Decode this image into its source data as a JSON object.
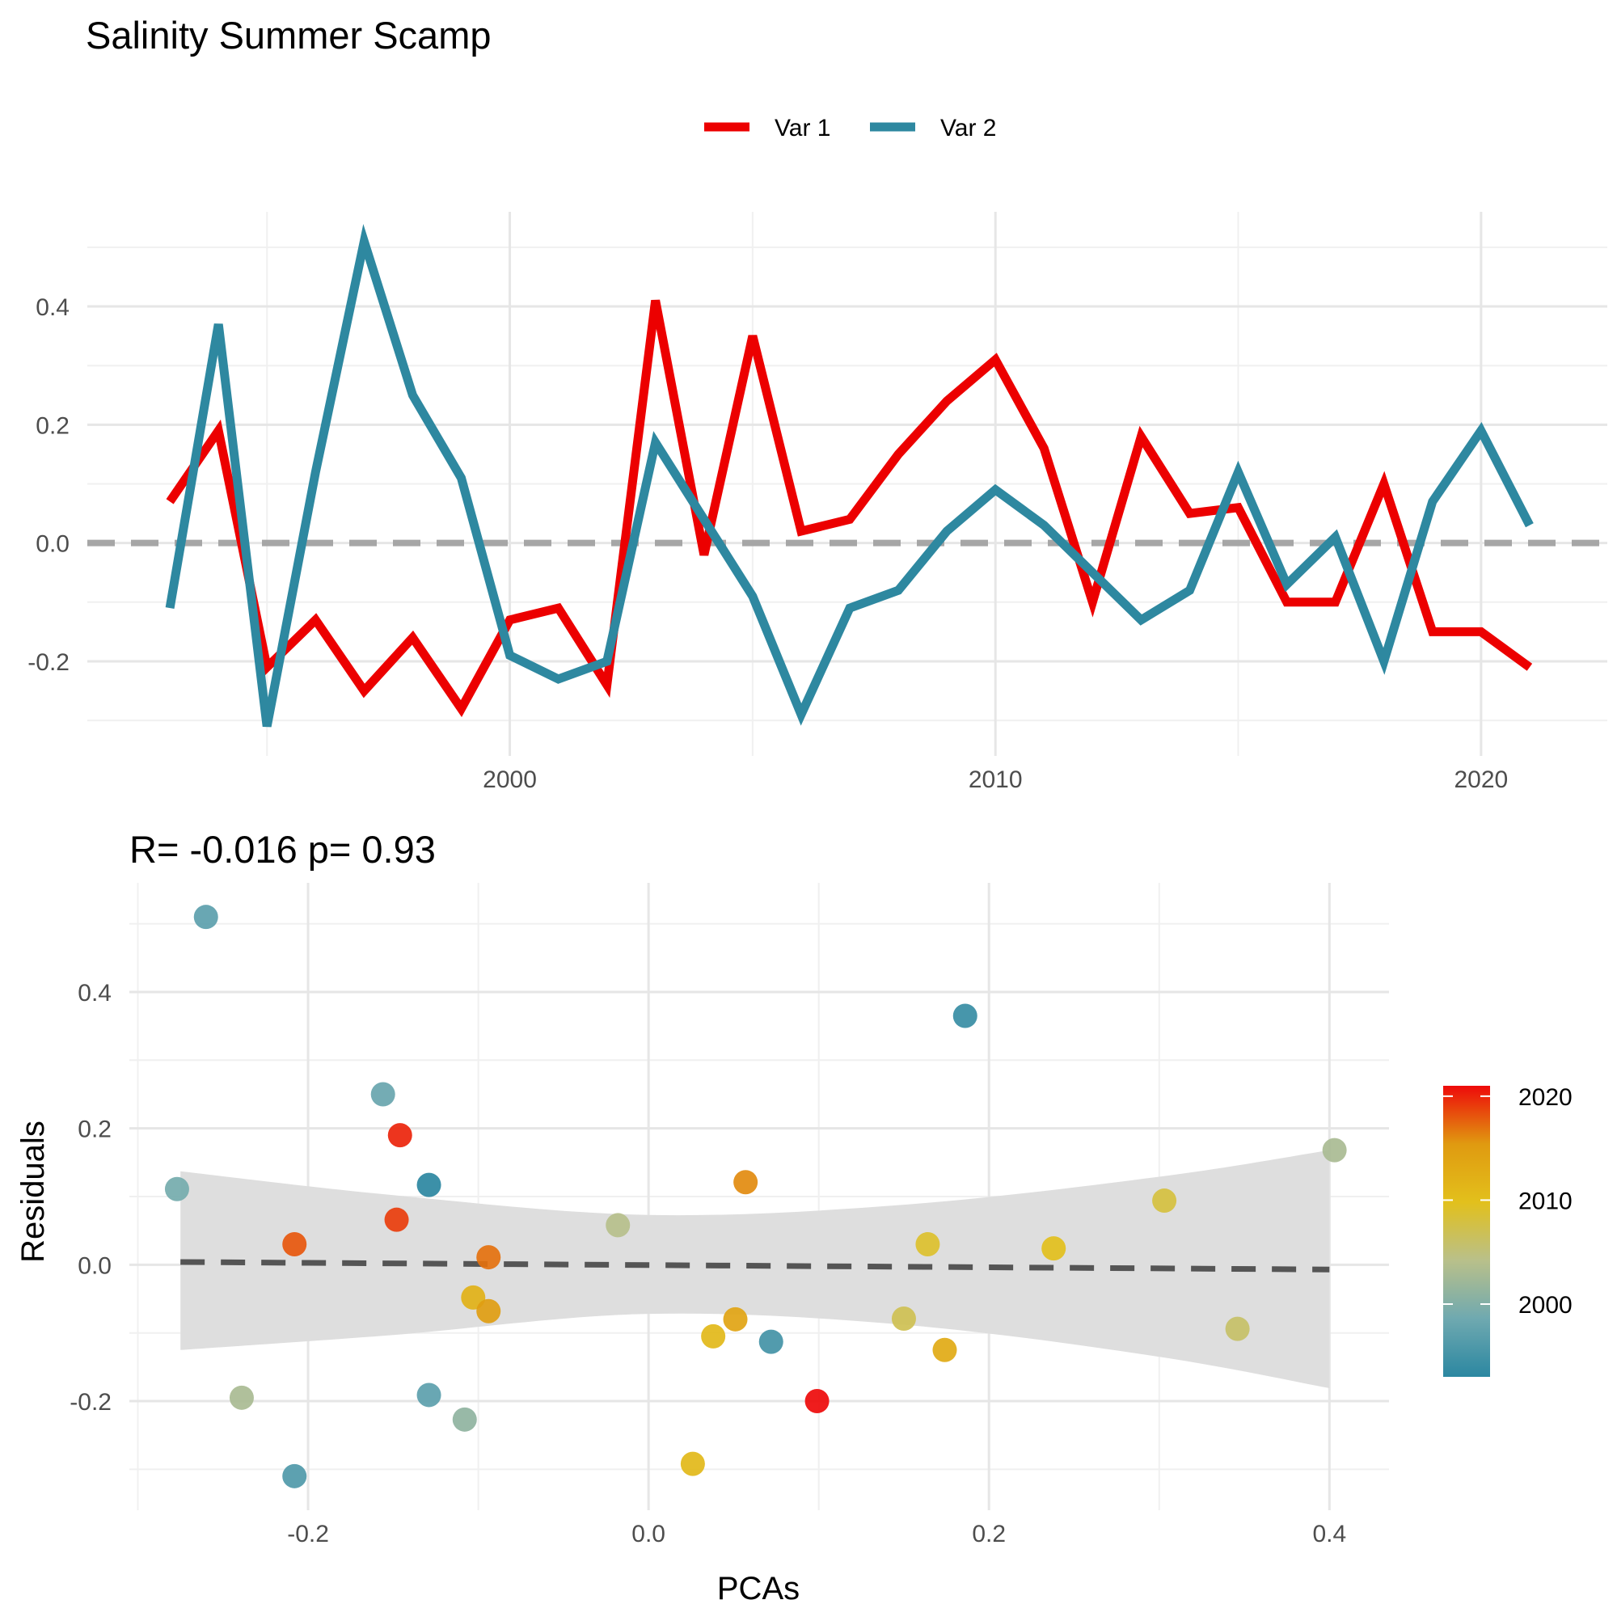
{
  "title": "Salinity Summer Scamp",
  "colors": {
    "var1": "#ec0000",
    "var2": "#2e88a0",
    "zero_line": "#a6a6a6",
    "fit_line": "#555555",
    "ribbon": "#dedede",
    "scale_low": "#2b87a1",
    "scale_mid1": "#6fa9b0",
    "scale_mid2": "#b9c08a",
    "scale_mid3": "#e2c01c",
    "scale_mid4": "#e09a10",
    "scale_high": "#ee0a0a"
  },
  "chart_data": [
    {
      "type": "line",
      "xlabel": "",
      "ylabel": "",
      "xlim": [
        1991.3,
        2022.6
      ],
      "ylim": [
        -0.36,
        0.56
      ],
      "x_ticks": [
        2000,
        2010,
        2020
      ],
      "x_tick_labels": [
        "2000",
        "2010",
        "2020"
      ],
      "y_ticks": [
        -0.2,
        0.0,
        0.2,
        0.4
      ],
      "y_tick_labels": [
        "-0.2",
        "0.0",
        "0.2",
        "0.4"
      ],
      "grid": true,
      "legend_position": "top",
      "reference_line": 0,
      "x": [
        1993,
        1994,
        1995,
        1996,
        1997,
        1998,
        1999,
        2000,
        2001,
        2002,
        2003,
        2004,
        2005,
        2006,
        2007,
        2008,
        2009,
        2010,
        2011,
        2012,
        2013,
        2014,
        2015,
        2016,
        2017,
        2018,
        2019,
        2020,
        2021
      ],
      "series": [
        {
          "name": "Var 1",
          "values": [
            0.07,
            0.19,
            -0.21,
            -0.13,
            -0.25,
            -0.16,
            -0.28,
            -0.13,
            -0.11,
            -0.24,
            0.41,
            -0.02,
            0.35,
            0.02,
            0.04,
            0.15,
            0.24,
            0.31,
            0.16,
            -0.1,
            0.18,
            0.05,
            0.06,
            -0.1,
            -0.1,
            0.1,
            -0.15,
            -0.15,
            -0.21
          ]
        },
        {
          "name": "Var 2",
          "values": [
            -0.11,
            0.37,
            -0.31,
            0.12,
            0.51,
            0.25,
            0.11,
            -0.19,
            -0.23,
            -0.2,
            0.17,
            0.04,
            -0.09,
            -0.29,
            -0.11,
            -0.08,
            0.02,
            0.09,
            0.03,
            -0.05,
            -0.13,
            -0.08,
            0.12,
            -0.07,
            0.01,
            -0.2,
            0.07,
            0.19,
            0.03
          ]
        }
      ]
    },
    {
      "type": "scatter",
      "subtitle": "R= -0.016  p= 0.93",
      "xlabel": "PCAs",
      "ylabel": "Residuals",
      "xlim": [
        -0.305,
        0.435
      ],
      "ylim": [
        -0.36,
        0.56
      ],
      "x_ticks": [
        -0.2,
        0.0,
        0.2,
        0.4
      ],
      "x_tick_labels": [
        "-0.2",
        "0.0",
        "0.2",
        "0.4"
      ],
      "y_ticks": [
        -0.2,
        0.0,
        0.2,
        0.4
      ],
      "y_tick_labels": [
        "-0.2",
        "0.0",
        "0.2",
        "0.4"
      ],
      "grid": true,
      "color_scale": {
        "variable": "year",
        "min": 1993,
        "max": 2021,
        "ticks": [
          2000,
          2010,
          2020
        ],
        "tick_labels": [
          "2000",
          "2010",
          "2020"
        ],
        "legend_position": "right"
      },
      "fit_line": {
        "x": [
          -0.275,
          0.4
        ],
        "y": [
          0.004,
          -0.007
        ]
      },
      "confidence_band": [
        {
          "x": -0.275,
          "lo": -0.125,
          "hi": 0.137
        },
        {
          "x": -0.15,
          "lo": -0.103,
          "hi": 0.102
        },
        {
          "x": 0.0,
          "lo": -0.072,
          "hi": 0.073
        },
        {
          "x": 0.15,
          "lo": -0.088,
          "hi": 0.088
        },
        {
          "x": 0.3,
          "lo": -0.135,
          "hi": 0.129
        },
        {
          "x": 0.4,
          "lo": -0.181,
          "hi": 0.168
        }
      ],
      "points": [
        {
          "x": -0.26,
          "y": 0.51,
          "year": 1997
        },
        {
          "x": 0.186,
          "y": 0.365,
          "year": 1994
        },
        {
          "x": -0.156,
          "y": 0.25,
          "year": 1998
        },
        {
          "x": -0.146,
          "y": 0.19,
          "year": 2020
        },
        {
          "x": 0.403,
          "y": 0.168,
          "year": 2003
        },
        {
          "x": -0.129,
          "y": 0.117,
          "year": 1993
        },
        {
          "x": 0.057,
          "y": 0.121,
          "year": 2016
        },
        {
          "x": -0.277,
          "y": 0.111,
          "year": 1999
        },
        {
          "x": 0.303,
          "y": 0.094,
          "year": 2008
        },
        {
          "x": -0.148,
          "y": 0.066,
          "year": 2019
        },
        {
          "x": -0.018,
          "y": 0.058,
          "year": 2004
        },
        {
          "x": -0.208,
          "y": 0.03,
          "year": 2018
        },
        {
          "x": 0.164,
          "y": 0.03,
          "year": 2009
        },
        {
          "x": 0.238,
          "y": 0.024,
          "year": 2010
        },
        {
          "x": -0.094,
          "y": 0.011,
          "year": 2017
        },
        {
          "x": -0.103,
          "y": -0.048,
          "year": 2012
        },
        {
          "x": -0.094,
          "y": -0.068,
          "year": 2015
        },
        {
          "x": 0.15,
          "y": -0.079,
          "year": 2007
        },
        {
          "x": 0.051,
          "y": -0.08,
          "year": 2014
        },
        {
          "x": 0.038,
          "y": -0.105,
          "year": 2011
        },
        {
          "x": 0.072,
          "y": -0.113,
          "year": 1995
        },
        {
          "x": 0.174,
          "y": -0.125,
          "year": 2013
        },
        {
          "x": 0.346,
          "y": -0.094,
          "year": 2006
        },
        {
          "x": -0.239,
          "y": -0.195,
          "year": 2003
        },
        {
          "x": -0.129,
          "y": -0.191,
          "year": 1997
        },
        {
          "x": 0.099,
          "y": -0.2,
          "year": 2021
        },
        {
          "x": -0.108,
          "y": -0.227,
          "year": 2001
        },
        {
          "x": -0.208,
          "y": -0.31,
          "year": 1996
        },
        {
          "x": 0.026,
          "y": -0.292,
          "year": 2011
        }
      ]
    }
  ]
}
